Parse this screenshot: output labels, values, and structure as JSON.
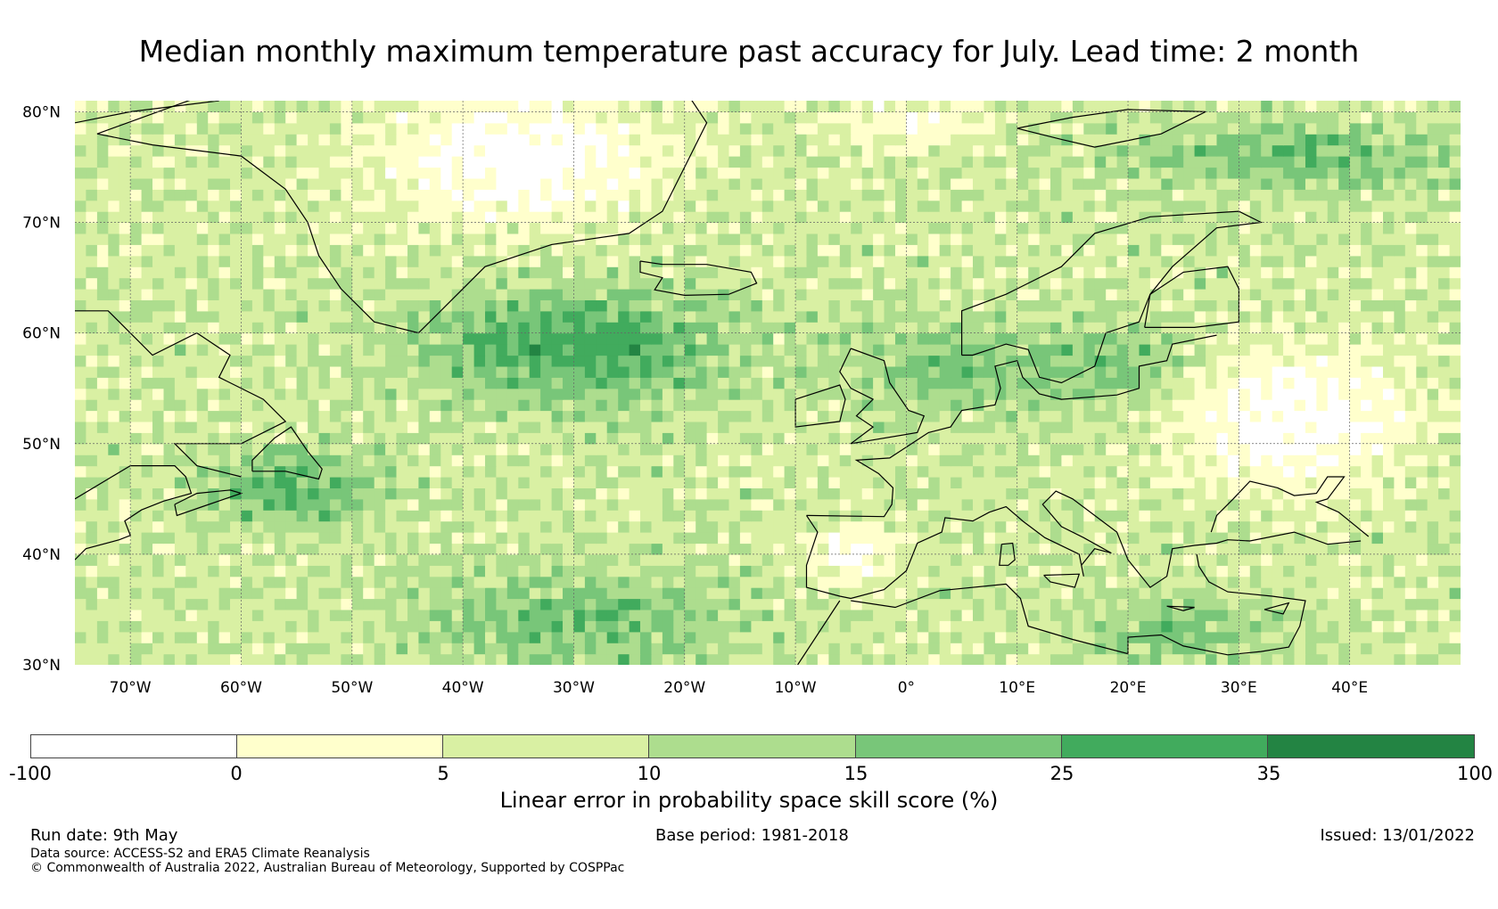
{
  "title": "Median monthly maximum temperature past accuracy for July. Lead time: 2 month",
  "map": {
    "lat_labels": [
      "30°N",
      "40°N",
      "50°N",
      "60°N",
      "70°N",
      "80°N"
    ],
    "lon_labels": [
      "70°W",
      "60°W",
      "50°W",
      "40°W",
      "30°W",
      "20°W",
      "10°W",
      "0°",
      "10°E",
      "20°E",
      "30°E",
      "40°E"
    ],
    "lat_range": [
      30,
      81
    ],
    "lon_range": [
      -75,
      50
    ]
  },
  "colorbar": {
    "ticks": [
      "-100",
      "0",
      "5",
      "10",
      "15",
      "25",
      "35",
      "100"
    ],
    "colors": [
      "#ffffff",
      "#ffffcc",
      "#d9f0a3",
      "#addd8e",
      "#78c679",
      "#41ab5d",
      "#238443"
    ],
    "label": "Linear error in probability space skill score (%)"
  },
  "footer": {
    "run_date": "Run date: 9th May",
    "base_period": "Base period: 1981-2018",
    "issued": "Issued: 13/01/2022",
    "data_source": "Data source: ACCESS-S2 and ERA5 Climate Reanalysis",
    "copyright": "© Commonwealth of Australia 2022, Australian Bureau of Meteorology, Supported by COSPPac"
  }
}
